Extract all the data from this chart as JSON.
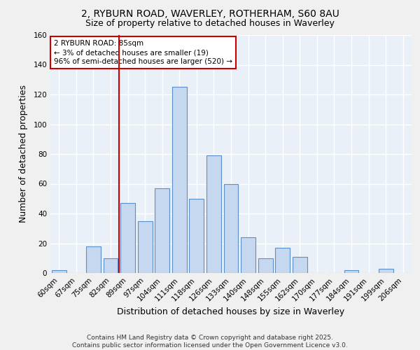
{
  "title1": "2, RYBURN ROAD, WAVERLEY, ROTHERHAM, S60 8AU",
  "title2": "Size of property relative to detached houses in Waverley",
  "xlabel": "Distribution of detached houses by size in Waverley",
  "ylabel": "Number of detached properties",
  "categories": [
    "60sqm",
    "67sqm",
    "75sqm",
    "82sqm",
    "89sqm",
    "97sqm",
    "104sqm",
    "111sqm",
    "118sqm",
    "126sqm",
    "133sqm",
    "140sqm",
    "148sqm",
    "155sqm",
    "162sqm",
    "170sqm",
    "177sqm",
    "184sqm",
    "191sqm",
    "199sqm",
    "206sqm"
  ],
  "values": [
    2,
    0,
    18,
    10,
    47,
    35,
    57,
    125,
    50,
    79,
    60,
    24,
    10,
    17,
    11,
    0,
    0,
    2,
    0,
    3,
    0
  ],
  "bar_color": "#c5d8f0",
  "bar_edge_color": "#5b8fc9",
  "annotation_box_color": "#ffffff",
  "annotation_box_edge": "#cc0000",
  "annotation_text": "2 RYBURN ROAD: 85sqm\n← 3% of detached houses are smaller (19)\n96% of semi-detached houses are larger (520) →",
  "vline_x": 3.5,
  "vline_color": "#cc0000",
  "ylim": [
    0,
    160
  ],
  "yticks": [
    0,
    20,
    40,
    60,
    80,
    100,
    120,
    140,
    160
  ],
  "background_color": "#eaf0f8",
  "grid_color": "#ffffff",
  "title_fontsize": 10,
  "subtitle_fontsize": 9,
  "tick_fontsize": 7.5,
  "label_fontsize": 9,
  "footer_text": "Contains HM Land Registry data © Crown copyright and database right 2025.\nContains public sector information licensed under the Open Government Licence v3.0.",
  "footer_fontsize": 6.5
}
